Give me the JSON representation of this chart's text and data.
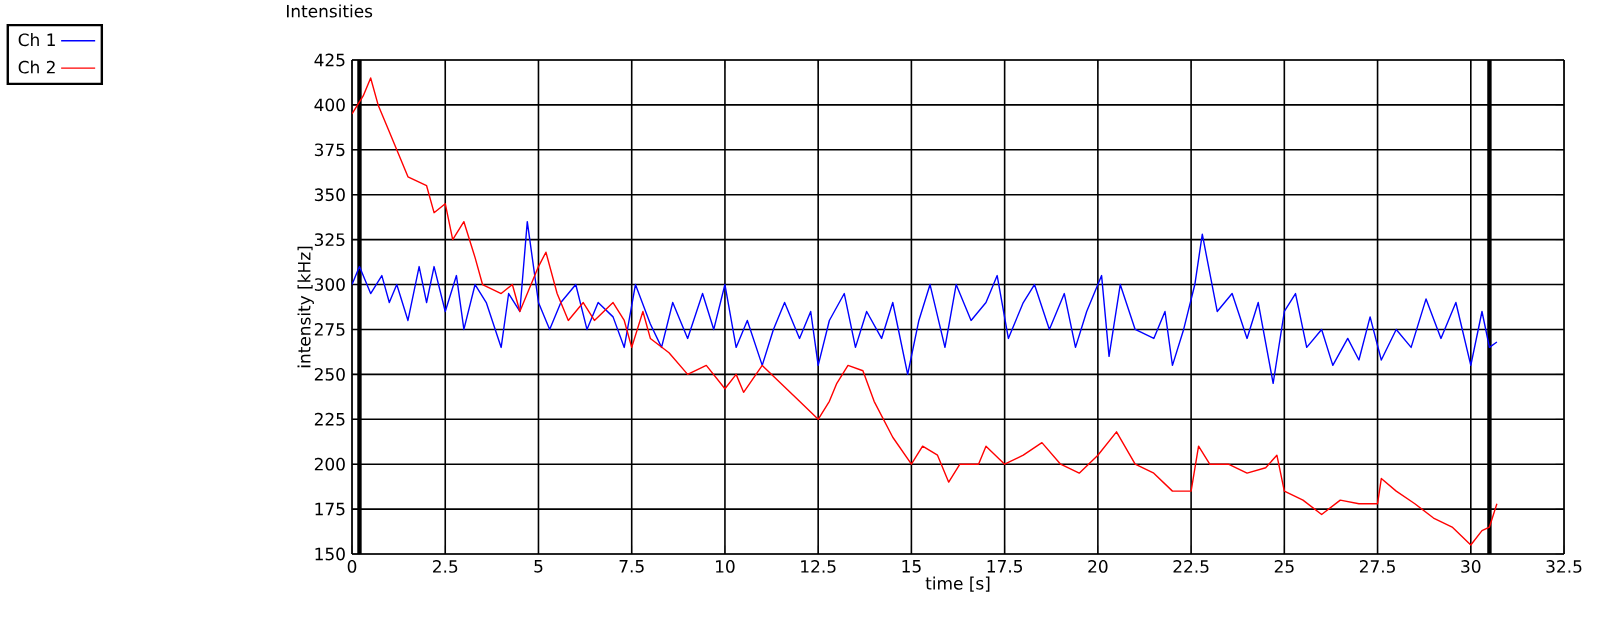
{
  "chart_data": {
    "type": "line",
    "title": "Intensities",
    "xlabel": "time [s]",
    "ylabel": "intensity [kHz]",
    "xlim": [
      0,
      32.5
    ],
    "ylim": [
      150,
      425
    ],
    "xticks": [
      0,
      2.5,
      5,
      7.5,
      10,
      12.5,
      15,
      17.5,
      20,
      22.5,
      25,
      27.5,
      30,
      32.5
    ],
    "yticks": [
      150,
      175,
      200,
      225,
      250,
      275,
      300,
      325,
      350,
      375,
      400,
      425
    ],
    "grid": true,
    "legend": "top left",
    "marker": "none",
    "line_style": "solid",
    "ref_lines": [
      {
        "axis": "x",
        "value": 0.2,
        "color": "#000000"
      },
      {
        "axis": "x",
        "value": 30.5,
        "color": "#000000"
      }
    ],
    "series": [
      {
        "name": "Ch 1",
        "color": "#0000ff",
        "x": [
          0,
          0.2,
          0.5,
          0.8,
          1.0,
          1.2,
          1.5,
          1.8,
          2.0,
          2.2,
          2.5,
          2.8,
          3.0,
          3.3,
          3.6,
          4.0,
          4.2,
          4.5,
          4.7,
          5.0,
          5.3,
          5.6,
          6.0,
          6.3,
          6.6,
          7.0,
          7.3,
          7.6,
          8.0,
          8.3,
          8.6,
          9.0,
          9.4,
          9.7,
          10.0,
          10.3,
          10.6,
          11.0,
          11.3,
          11.6,
          12.0,
          12.3,
          12.5,
          12.8,
          13.2,
          13.5,
          13.8,
          14.2,
          14.5,
          14.9,
          15.2,
          15.5,
          15.9,
          16.2,
          16.6,
          17.0,
          17.3,
          17.6,
          18.0,
          18.3,
          18.7,
          19.1,
          19.4,
          19.7,
          20.1,
          20.3,
          20.6,
          21.0,
          21.5,
          21.8,
          22.0,
          22.3,
          22.6,
          22.8,
          23.2,
          23.6,
          24.0,
          24.3,
          24.7,
          25.0,
          25.3,
          25.6,
          26.0,
          26.3,
          26.7,
          27.0,
          27.3,
          27.6,
          28.0,
          28.4,
          28.8,
          29.2,
          29.6,
          30.0,
          30.3,
          30.5,
          30.7
        ],
        "values": [
          300,
          310,
          295,
          305,
          290,
          300,
          280,
          310,
          290,
          310,
          285,
          305,
          275,
          300,
          290,
          265,
          295,
          285,
          335,
          290,
          275,
          290,
          300,
          275,
          290,
          282,
          265,
          300,
          278,
          265,
          290,
          270,
          295,
          275,
          300,
          265,
          280,
          255,
          275,
          290,
          270,
          285,
          255,
          280,
          295,
          265,
          285,
          270,
          290,
          250,
          280,
          300,
          265,
          300,
          280,
          290,
          305,
          270,
          290,
          300,
          275,
          295,
          265,
          285,
          305,
          260,
          300,
          275,
          270,
          285,
          255,
          275,
          300,
          328,
          285,
          295,
          270,
          290,
          245,
          285,
          295,
          265,
          275,
          255,
          270,
          258,
          282,
          258,
          275,
          265,
          292,
          270,
          290,
          255,
          285,
          265,
          268
        ]
      },
      {
        "name": "Ch 2",
        "color": "#ff0000",
        "x": [
          0,
          0.3,
          0.5,
          0.7,
          1.0,
          1.3,
          1.5,
          2.0,
          2.2,
          2.5,
          2.7,
          3.0,
          3.3,
          3.5,
          4.0,
          4.3,
          4.5,
          5.0,
          5.2,
          5.5,
          5.8,
          6.2,
          6.5,
          7.0,
          7.3,
          7.5,
          7.8,
          8.0,
          8.5,
          9.0,
          9.5,
          10.0,
          10.3,
          10.5,
          11.0,
          11.5,
          12.0,
          12.5,
          12.8,
          13.0,
          13.3,
          13.7,
          14.0,
          14.5,
          15.0,
          15.3,
          15.7,
          16.0,
          16.3,
          16.8,
          17.0,
          17.5,
          18.0,
          18.5,
          19.0,
          19.5,
          20.0,
          20.5,
          21.0,
          21.5,
          22.0,
          22.5,
          22.7,
          23.0,
          23.5,
          24.0,
          24.5,
          24.8,
          25.0,
          25.5,
          26.0,
          26.5,
          27.0,
          27.5,
          27.6,
          28.0,
          28.5,
          29.0,
          29.5,
          30.0,
          30.3,
          30.5,
          30.7
        ],
        "values": [
          395,
          405,
          415,
          400,
          385,
          370,
          360,
          355,
          340,
          345,
          325,
          335,
          315,
          300,
          295,
          300,
          285,
          310,
          318,
          295,
          280,
          290,
          280,
          290,
          280,
          265,
          285,
          270,
          262,
          250,
          255,
          242,
          250,
          240,
          255,
          245,
          235,
          225,
          235,
          245,
          255,
          252,
          235,
          215,
          200,
          210,
          205,
          190,
          200,
          200,
          210,
          200,
          205,
          212,
          200,
          195,
          205,
          218,
          200,
          195,
          185,
          185,
          210,
          200,
          200,
          195,
          198,
          205,
          185,
          180,
          172,
          180,
          178,
          178,
          192,
          185,
          178,
          170,
          165,
          155,
          163,
          165,
          178
        ]
      }
    ]
  }
}
